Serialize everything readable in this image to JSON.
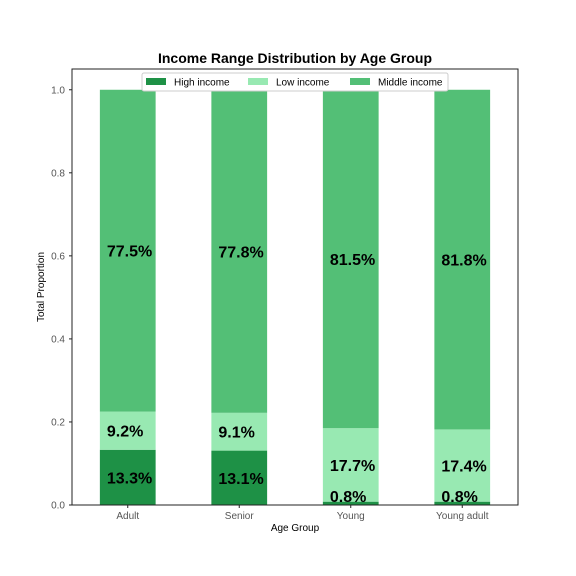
{
  "chart_data": {
    "type": "bar",
    "stacked": true,
    "title": "Income Range Distribution by Age Group",
    "xlabel": "Age Group",
    "ylabel": "Total Proportion",
    "categories": [
      "Adult",
      "Senior",
      "Young",
      "Young adult"
    ],
    "ylim": [
      0,
      1.05
    ],
    "yticks": [
      "0.0",
      "0.2",
      "0.4",
      "0.6",
      "0.8",
      "1.0"
    ],
    "grid": false,
    "legend_position": "top-center",
    "series": [
      {
        "name": "High income",
        "color": "#1e9146",
        "values": [
          0.133,
          0.131,
          0.008,
          0.008
        ],
        "labels": [
          "13.3%",
          "13.1%",
          "0.8%",
          "0.8%"
        ]
      },
      {
        "name": "Low income",
        "color": "#98e9b2",
        "values": [
          0.092,
          0.091,
          0.177,
          0.174
        ],
        "labels": [
          "9.2%",
          "9.1%",
          "17.7%",
          "17.4%"
        ]
      },
      {
        "name": "Middle income",
        "color": "#53bf76",
        "values": [
          0.775,
          0.778,
          0.815,
          0.818
        ],
        "labels": [
          "77.5%",
          "77.8%",
          "81.5%",
          "81.8%"
        ]
      }
    ]
  }
}
